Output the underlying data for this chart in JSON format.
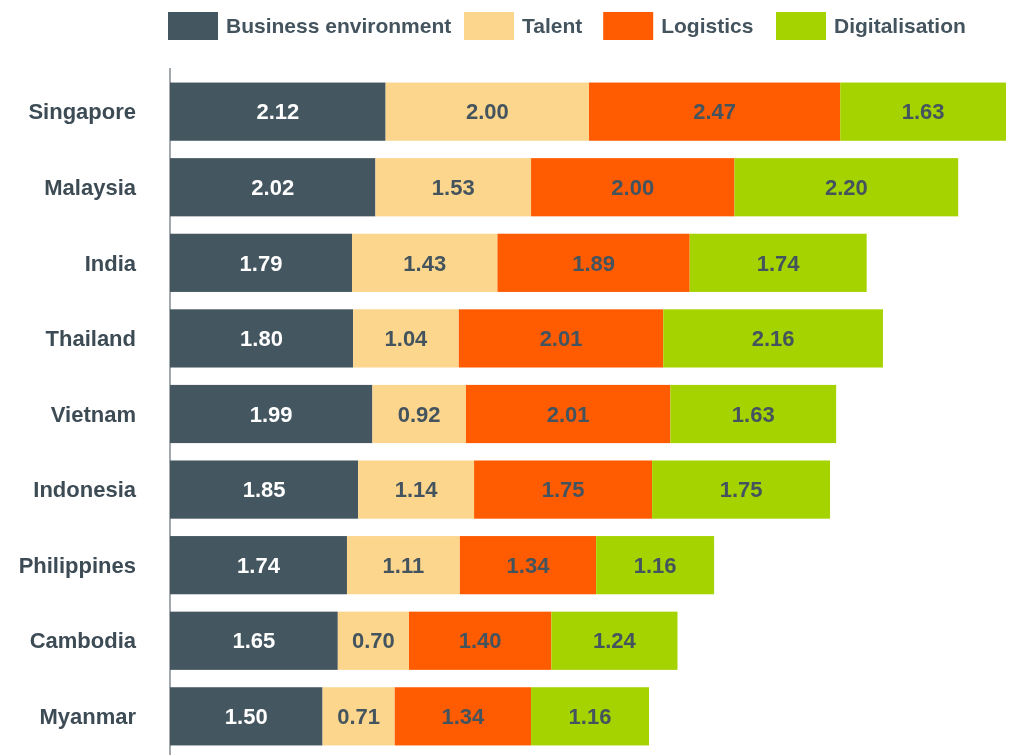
{
  "chart_data": {
    "type": "bar",
    "orientation": "horizontal",
    "stacked": true,
    "legend": "top",
    "categories": [
      "Singapore",
      "Malaysia",
      "India",
      "Thailand",
      "Vietnam",
      "Indonesia",
      "Philippines",
      "Cambodia",
      "Myanmar"
    ],
    "series": [
      {
        "name": "Business environment",
        "color": "#44565f",
        "values": [
          2.12,
          2.02,
          1.79,
          1.8,
          1.99,
          1.85,
          1.74,
          1.65,
          1.5
        ],
        "value_labels": [
          "2.12",
          "2.02",
          "1.79",
          "1.80",
          "1.99",
          "1.85",
          "1.74",
          "1.65",
          "1.50"
        ]
      },
      {
        "name": "Talent",
        "color": "#fdd68d",
        "values": [
          2.0,
          1.53,
          1.43,
          1.04,
          0.92,
          1.14,
          1.11,
          0.7,
          0.71
        ],
        "value_labels": [
          "2.00",
          "1.53",
          "1.43",
          "1.04",
          "0.92",
          "1.14",
          "1.11",
          "0.70",
          "0.71"
        ]
      },
      {
        "name": "Logistics",
        "color": "#ff5b00",
        "values": [
          2.47,
          2.0,
          1.89,
          2.01,
          2.01,
          1.75,
          1.34,
          1.4,
          1.34
        ],
        "value_labels": [
          "2.47",
          "2.00",
          "1.89",
          "2.01",
          "2.01",
          "1.75",
          "1.34",
          "1.40",
          "1.34"
        ]
      },
      {
        "name": "Digitalisation",
        "color": "#a5d300",
        "values": [
          1.63,
          2.2,
          1.74,
          2.16,
          1.63,
          1.75,
          1.16,
          1.24,
          1.16
        ],
        "value_labels": [
          "1.63",
          "2.20",
          "1.74",
          "2.16",
          "1.63",
          "1.75",
          "1.16",
          "1.24",
          "1.16"
        ]
      }
    ]
  }
}
